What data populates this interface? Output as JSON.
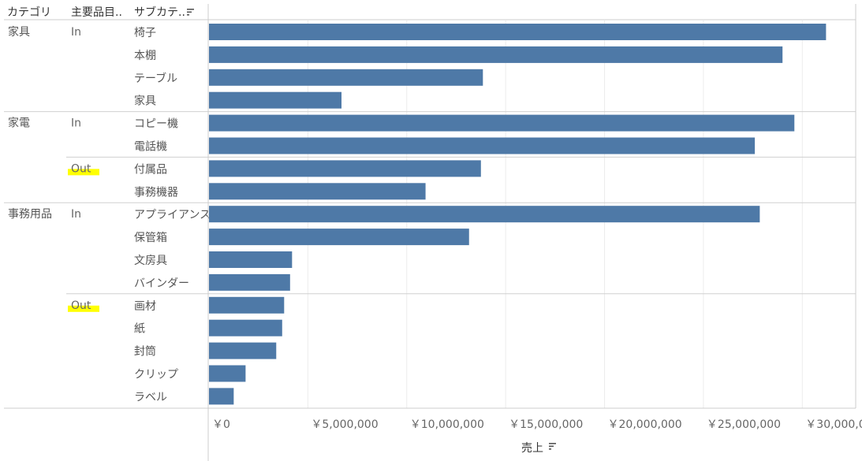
{
  "headers": {
    "category": "カテゴリ",
    "main_item": "主要品目..",
    "subcategory": "サブカテ.."
  },
  "sort_icon": "sort-descending-icon",
  "bar_color": "#4e79a7",
  "highlight_color": "#ffff00",
  "chart_data": {
    "type": "bar",
    "orientation": "horizontal",
    "xlabel": "売上",
    "xlim": [
      0,
      32700000
    ],
    "x_ticks": [
      "￥0",
      "￥5,000,000",
      "￥10,000,000",
      "￥15,000,000",
      "￥20,000,000",
      "￥25,000,000",
      "￥30,000,000"
    ],
    "x_tick_values": [
      0,
      5000000,
      10000000,
      15000000,
      20000000,
      25000000,
      30000000
    ],
    "grid": true,
    "groups": [
      {
        "category": "家具",
        "in_out": "In",
        "highlight": false,
        "items": [
          {
            "name": "椅子",
            "value": 31200000
          },
          {
            "name": "本棚",
            "value": 29000000
          },
          {
            "name": "テーブル",
            "value": 13850000
          },
          {
            "name": "家具",
            "value": 6700000
          }
        ]
      },
      {
        "category": "家電",
        "in_out": "In",
        "highlight": false,
        "items": [
          {
            "name": "コピー機",
            "value": 29600000
          },
          {
            "name": "電話機",
            "value": 27600000
          }
        ]
      },
      {
        "category": "",
        "in_out": "Out",
        "highlight": true,
        "items": [
          {
            "name": "付属品",
            "value": 13750000
          },
          {
            "name": "事務機器",
            "value": 10950000
          }
        ]
      },
      {
        "category": "事務用品",
        "in_out": "In",
        "highlight": false,
        "items": [
          {
            "name": "アプライアンス",
            "value": 27850000
          },
          {
            "name": "保管箱",
            "value": 13150000
          },
          {
            "name": "文房具",
            "value": 4200000
          },
          {
            "name": "バインダー",
            "value": 4100000
          }
        ]
      },
      {
        "category": "",
        "in_out": "Out",
        "highlight": true,
        "items": [
          {
            "name": "画材",
            "value": 3800000
          },
          {
            "name": "紙",
            "value": 3700000
          },
          {
            "name": "封筒",
            "value": 3400000
          },
          {
            "name": "クリップ",
            "value": 1850000
          },
          {
            "name": "ラベル",
            "value": 1250000
          }
        ]
      }
    ]
  }
}
